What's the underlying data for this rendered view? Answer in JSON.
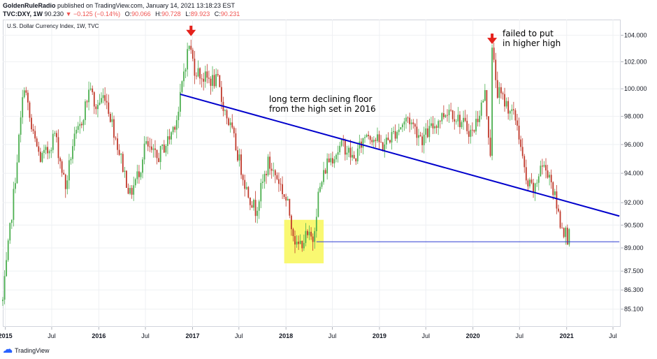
{
  "header": {
    "publisher": "GoldenRuleRadio",
    "published_text": " published on TradingView.com, January 14, 2021 13:18:23 EST",
    "symbol": "TVC:DXY, 1W",
    "last": "90.230",
    "change": "−0.125 (−0.14%)",
    "open_label": "O:",
    "open": "90.066",
    "high_label": "H:",
    "high": "90.728",
    "low_label": "L:",
    "low": "89.923",
    "close_label": "C:",
    "close": "90.231"
  },
  "caption": "U.S. Dollar Currency Index, 1W, TVC",
  "footer": {
    "brand": "TradingView"
  },
  "colors": {
    "up": "#4caf50",
    "down": "#c0392b",
    "trendline": "#0000cc",
    "support": "#2a3bd1",
    "highlight": "#f9f871",
    "arrow": "#e5211b",
    "grid": "#eef0f3",
    "axis_text": "#131722"
  },
  "chart_data": {
    "type": "candlestick",
    "title": "U.S. Dollar Currency Index, 1W, TVC",
    "x": {
      "start_date": "2014-12-22",
      "end_date": "2021-07-31",
      "tick_labels": [
        {
          "date": "2015-01-01",
          "label": "2015",
          "bold": true
        },
        {
          "date": "2015-07-01",
          "label": "Jul"
        },
        {
          "date": "2016-01-01",
          "label": "2016",
          "bold": true
        },
        {
          "date": "2016-07-01",
          "label": "Jul"
        },
        {
          "date": "2017-01-01",
          "label": "2017",
          "bold": true
        },
        {
          "date": "2017-07-01",
          "label": "Jul"
        },
        {
          "date": "2018-01-01",
          "label": "2018",
          "bold": true
        },
        {
          "date": "2018-07-01",
          "label": "Jul"
        },
        {
          "date": "2019-01-01",
          "label": "2019",
          "bold": true
        },
        {
          "date": "2019-07-01",
          "label": "Jul"
        },
        {
          "date": "2020-01-01",
          "label": "2020",
          "bold": true
        },
        {
          "date": "2020-07-01",
          "label": "Jul"
        },
        {
          "date": "2021-01-01",
          "label": "2021",
          "bold": true
        },
        {
          "date": "2021-07-01",
          "label": "Jul"
        }
      ]
    },
    "y": {
      "scale": "log",
      "range": [
        84.0,
        105.2
      ],
      "ticks": [
        "85.100",
        "86.300",
        "87.500",
        "89.000",
        "90.500",
        "92.000",
        "94.000",
        "96.000",
        "98.000",
        "100.000",
        "102.000",
        "104.000"
      ]
    },
    "price_path": [
      [
        "2014-12-22",
        85.6
      ],
      [
        "2015-01-12",
        89.0
      ],
      [
        "2015-02-02",
        92.5
      ],
      [
        "2015-03-16",
        100.4
      ],
      [
        "2015-04-13",
        97.0
      ],
      [
        "2015-05-18",
        95.0
      ],
      [
        "2015-06-15",
        95.5
      ],
      [
        "2015-07-13",
        96.8
      ],
      [
        "2015-08-24",
        93.0
      ],
      [
        "2015-09-21",
        96.0
      ],
      [
        "2015-10-19",
        97.2
      ],
      [
        "2015-11-30",
        100.3
      ],
      [
        "2015-12-14",
        98.5
      ],
      [
        "2016-01-25",
        99.6
      ],
      [
        "2016-02-29",
        97.0
      ],
      [
        "2016-05-02",
        92.5
      ],
      [
        "2016-06-13",
        94.5
      ],
      [
        "2016-06-27",
        96.0
      ],
      [
        "2016-08-15",
        95.0
      ],
      [
        "2016-10-03",
        96.5
      ],
      [
        "2016-11-07",
        98.3
      ],
      [
        "2016-11-28",
        101.3
      ],
      [
        "2016-12-19",
        103.3
      ],
      [
        "2017-01-09",
        101.5
      ],
      [
        "2017-02-13",
        100.8
      ],
      [
        "2017-04-10",
        100.5
      ],
      [
        "2017-04-24",
        99.2
      ],
      [
        "2017-06-05",
        96.8
      ],
      [
        "2017-07-31",
        92.9
      ],
      [
        "2017-09-04",
        91.5
      ],
      [
        "2017-10-23",
        94.7
      ],
      [
        "2017-12-04",
        93.5
      ],
      [
        "2018-01-08",
        91.8
      ],
      [
        "2018-02-12",
        89.0
      ],
      [
        "2018-03-19",
        89.7
      ],
      [
        "2018-04-16",
        89.6
      ],
      [
        "2018-05-07",
        92.5
      ],
      [
        "2018-06-11",
        94.8
      ],
      [
        "2018-08-13",
        96.0
      ],
      [
        "2018-09-24",
        94.9
      ],
      [
        "2018-11-12",
        96.9
      ],
      [
        "2019-01-14",
        95.9
      ],
      [
        "2019-04-22",
        97.9
      ],
      [
        "2019-06-17",
        96.4
      ],
      [
        "2019-09-30",
        98.6
      ],
      [
        "2019-11-04",
        97.8
      ],
      [
        "2019-12-30",
        96.8
      ],
      [
        "2020-02-17",
        99.6
      ],
      [
        "2020-03-09",
        95.5
      ],
      [
        "2020-03-16",
        102.8
      ],
      [
        "2020-04-06",
        99.8
      ],
      [
        "2020-05-25",
        98.5
      ],
      [
        "2020-06-22",
        97.5
      ],
      [
        "2020-07-27",
        93.3
      ],
      [
        "2020-08-31",
        92.8
      ],
      [
        "2020-09-21",
        94.6
      ],
      [
        "2020-10-26",
        94.0
      ],
      [
        "2020-11-16",
        92.3
      ],
      [
        "2020-12-07",
        90.7
      ],
      [
        "2021-01-04",
        89.7
      ],
      [
        "2021-01-11",
        90.23
      ]
    ],
    "annotations": [
      {
        "text": "long term declining floor\nfrom the high set in 2016"
      },
      {
        "text": "failed to put\nin higher high"
      }
    ],
    "trendline": {
      "from": [
        "2016-11-14",
        99.6
      ],
      "to": [
        "2021-07-26",
        91.1
      ]
    },
    "support_line": {
      "from": [
        "2018-04-30",
        89.4
      ],
      "to": [
        "2021-07-26",
        89.4
      ]
    },
    "highlight_box": {
      "from": [
        "2017-12-25",
        90.85
      ],
      "to": [
        "2018-05-28",
        88.0
      ]
    },
    "arrows": [
      {
        "date": "2016-12-26",
        "price": 104.3
      },
      {
        "date": "2020-03-16",
        "price": 103.7
      }
    ]
  }
}
